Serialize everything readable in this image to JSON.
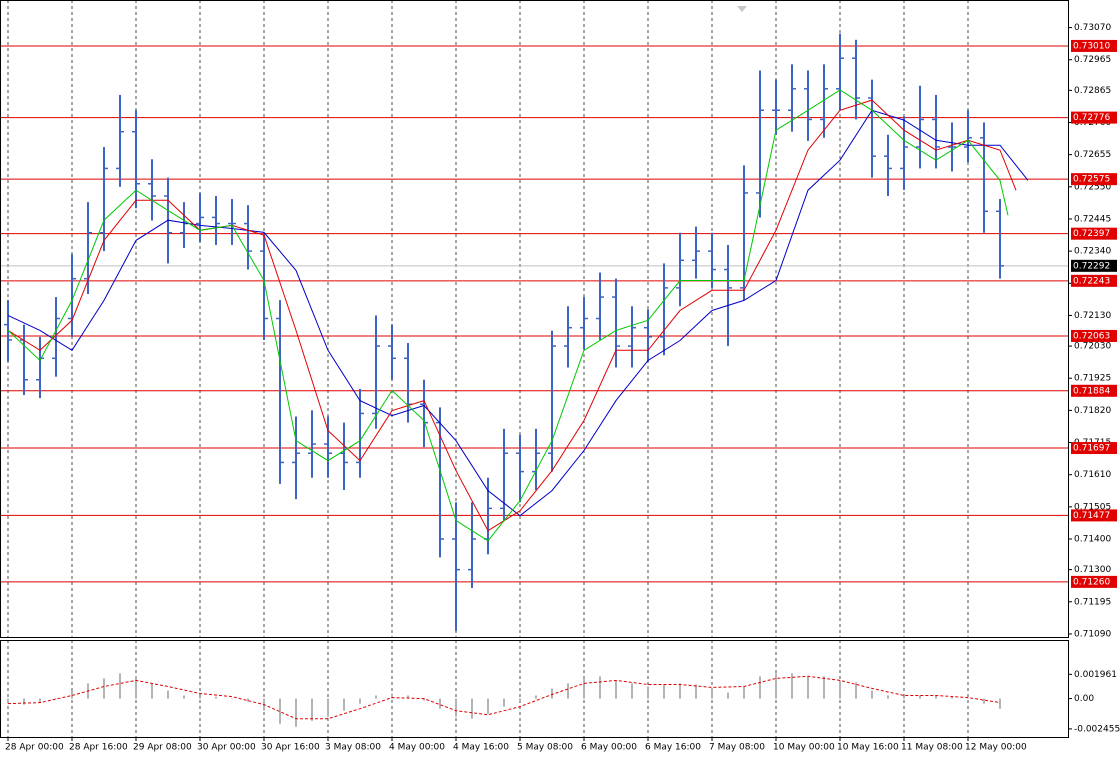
{
  "chart_data": [
    {
      "type": "ohlc",
      "color": "#3d63c4",
      "xlim": [
        -2,
        265
      ],
      "ylim": [
        0.7108,
        0.7316
      ],
      "grid": true,
      "x": [
        0,
        4,
        8,
        12,
        16,
        20,
        24,
        28,
        32,
        36,
        40,
        44,
        48,
        52,
        56,
        60,
        64,
        68,
        72,
        76,
        80,
        84,
        88,
        92,
        96,
        100,
        104,
        108,
        112,
        116,
        120,
        124,
        128,
        132,
        136,
        140,
        144,
        148,
        152,
        156,
        160,
        164,
        168,
        172,
        176,
        180,
        184,
        188,
        192,
        196,
        200,
        204,
        208,
        212,
        216,
        220,
        224,
        228,
        232,
        236,
        240,
        244,
        248
      ],
      "open": [
        0.721,
        0.7205,
        0.7192,
        0.7199,
        0.7212,
        0.7225,
        0.724,
        0.7261,
        0.7273,
        0.7256,
        0.7252,
        0.724,
        0.7243,
        0.7245,
        0.7243,
        0.7243,
        0.7234,
        0.7212,
        0.7165,
        0.7168,
        0.7171,
        0.7168,
        0.7165,
        0.7181,
        0.7203,
        0.7199,
        0.7184,
        0.7178,
        0.714,
        0.713,
        0.714,
        0.715,
        0.7168,
        0.7162,
        0.7168,
        0.7203,
        0.7209,
        0.7212,
        0.7219,
        0.7203,
        0.7209,
        0.7206,
        0.7222,
        0.7231,
        0.7234,
        0.7228,
        0.7222,
        0.7253,
        0.728,
        0.728,
        0.7287,
        0.7277,
        0.7287,
        0.7297,
        0.7284,
        0.7265,
        0.7261,
        0.7268,
        0.7277,
        0.7268,
        0.7268,
        0.7271,
        0.7247
      ],
      "high": [
        0.7218,
        0.721,
        0.7206,
        0.7219,
        0.7233,
        0.725,
        0.7268,
        0.7285,
        0.728,
        0.7264,
        0.7258,
        0.725,
        0.7253,
        0.7252,
        0.7251,
        0.7249,
        0.724,
        0.7218,
        0.718,
        0.7182,
        0.718,
        0.7178,
        0.7189,
        0.7213,
        0.721,
        0.7204,
        0.7192,
        0.7183,
        0.7152,
        0.7152,
        0.716,
        0.7176,
        0.7174,
        0.7176,
        0.7208,
        0.7216,
        0.7219,
        0.7227,
        0.7225,
        0.7216,
        0.7215,
        0.723,
        0.724,
        0.7242,
        0.724,
        0.7236,
        0.7262,
        0.7293,
        0.729,
        0.7295,
        0.7293,
        0.7295,
        0.7305,
        0.7303,
        0.729,
        0.7272,
        0.7278,
        0.7288,
        0.7285,
        0.7276,
        0.728,
        0.7276,
        0.7251
      ],
      "low": [
        0.7198,
        0.7187,
        0.7186,
        0.7193,
        0.7206,
        0.722,
        0.7234,
        0.7255,
        0.7248,
        0.7244,
        0.723,
        0.7235,
        0.7237,
        0.7236,
        0.7236,
        0.7228,
        0.7205,
        0.7158,
        0.7153,
        0.716,
        0.716,
        0.7156,
        0.716,
        0.7176,
        0.7192,
        0.7178,
        0.717,
        0.7134,
        0.711,
        0.7124,
        0.7135,
        0.7146,
        0.7152,
        0.7156,
        0.7162,
        0.7196,
        0.7202,
        0.7205,
        0.7196,
        0.7196,
        0.7198,
        0.72,
        0.7216,
        0.7225,
        0.7222,
        0.7203,
        0.7218,
        0.7245,
        0.7272,
        0.7273,
        0.727,
        0.7271,
        0.728,
        0.7277,
        0.7258,
        0.7252,
        0.7254,
        0.7261,
        0.7261,
        0.726,
        0.7263,
        0.724,
        0.7225
      ],
      "close": [
        0.7205,
        0.7192,
        0.7199,
        0.7212,
        0.7225,
        0.724,
        0.7261,
        0.7273,
        0.7256,
        0.7252,
        0.724,
        0.7243,
        0.7245,
        0.7243,
        0.7243,
        0.7234,
        0.7212,
        0.7165,
        0.7168,
        0.7171,
        0.7168,
        0.7165,
        0.7181,
        0.7203,
        0.7199,
        0.7184,
        0.7178,
        0.714,
        0.713,
        0.714,
        0.715,
        0.7168,
        0.7162,
        0.7168,
        0.7203,
        0.7209,
        0.7212,
        0.7219,
        0.7203,
        0.7209,
        0.7206,
        0.7222,
        0.7231,
        0.7234,
        0.7228,
        0.7222,
        0.7253,
        0.728,
        0.728,
        0.7287,
        0.7277,
        0.7287,
        0.7297,
        0.7284,
        0.7265,
        0.7261,
        0.7268,
        0.7277,
        0.7268,
        0.7268,
        0.7271,
        0.7247,
        0.72292
      ],
      "series": [
        {
          "color": "#0000c8",
          "x": [
            0,
            8,
            16,
            24,
            32,
            40,
            48,
            56,
            64,
            72,
            80,
            88,
            96,
            104,
            112,
            120,
            128,
            136,
            144,
            152,
            160,
            168,
            176,
            184,
            192,
            200,
            208,
            216,
            224,
            232,
            240,
            248,
            255
          ],
          "values": [
            0.7213,
            0.72081,
            0.72016,
            0.72179,
            0.72375,
            0.72441,
            0.72424,
            0.72414,
            0.72401,
            0.72277,
            0.72016,
            0.71852,
            0.71803,
            0.71836,
            0.71721,
            0.71558,
            0.71476,
            0.71558,
            0.71689,
            0.71852,
            0.71983,
            0.72048,
            0.72146,
            0.72179,
            0.72244,
            0.72539,
            0.72637,
            0.728,
            0.72768,
            0.72702,
            0.72686,
            0.72686,
            0.72571
          ]
        },
        {
          "color": "#e00000",
          "x": [
            0,
            8,
            16,
            24,
            32,
            40,
            48,
            56,
            64,
            72,
            80,
            88,
            96,
            104,
            112,
            120,
            128,
            136,
            144,
            152,
            160,
            168,
            176,
            184,
            192,
            200,
            208,
            216,
            224,
            232,
            240,
            248,
            252
          ],
          "values": [
            0.72081,
            0.72016,
            0.72114,
            0.72375,
            0.72506,
            0.72506,
            0.72408,
            0.72424,
            0.72392,
            0.72081,
            0.71754,
            0.71656,
            0.71819,
            0.71852,
            0.71623,
            0.71427,
            0.71492,
            0.71623,
            0.71787,
            0.72016,
            0.72016,
            0.72146,
            0.72212,
            0.72212,
            0.72408,
            0.7267,
            0.728,
            0.72833,
            0.72735,
            0.7267,
            0.72702,
            0.7267,
            0.72539
          ]
        },
        {
          "color": "#00c800",
          "x": [
            0,
            8,
            16,
            24,
            32,
            40,
            48,
            56,
            64,
            72,
            80,
            88,
            96,
            104,
            112,
            120,
            128,
            136,
            144,
            152,
            160,
            168,
            176,
            184,
            192,
            200,
            208,
            216,
            224,
            232,
            240,
            248,
            250
          ],
          "values": [
            0.72081,
            0.71983,
            0.72179,
            0.72441,
            0.72539,
            0.72473,
            0.72408,
            0.72424,
            0.72244,
            0.71721,
            0.71656,
            0.71721,
            0.71885,
            0.71787,
            0.7146,
            0.71394,
            0.71525,
            0.71721,
            0.72016,
            0.72081,
            0.72114,
            0.72244,
            0.72244,
            0.72244,
            0.72735,
            0.728,
            0.72866,
            0.728,
            0.72702,
            0.72637,
            0.72702,
            0.72571,
            0.72457
          ]
        }
      ],
      "levels": [
        {
          "value": 0.7301,
          "label": "0.73010"
        },
        0.72776,
        0.72575,
        0.72397,
        0.72243,
        0.72063,
        0.71884,
        0.71697,
        0.71477,
        {
          "value": 0.7126,
          "label": "0.71260"
        }
      ],
      "level_color": "#e00000",
      "current_price": 0.72292,
      "yticks": [
        {
          "value": 0.7307,
          "label": "0.73070"
        },
        0.72965,
        0.72865,
        {
          "value": 0.7276,
          "label": "0.72760"
        },
        0.72655,
        {
          "value": 0.7255,
          "label": "0.72550"
        },
        0.72445,
        {
          "value": 0.7234,
          "label": "0.72340"
        },
        0.72235,
        {
          "value": 0.7213,
          "label": "0.72130"
        },
        {
          "value": 0.7203,
          "label": "0.72030"
        },
        0.71925,
        {
          "value": 0.7182,
          "label": "0.71820"
        },
        0.71715,
        {
          "value": 0.7161,
          "label": "0.71610"
        },
        0.71505,
        {
          "value": 0.714,
          "label": "0.71400"
        },
        {
          "value": 0.713,
          "label": "0.71300"
        },
        0.71195,
        {
          "value": 0.7109,
          "label": "0.71090"
        }
      ],
      "xticks": [
        {
          "value": 0,
          "label": "28 Apr 00:00"
        },
        {
          "value": 16,
          "label": "28 Apr 16:00"
        },
        {
          "value": 32,
          "label": "29 Apr 08:00"
        },
        {
          "value": 48,
          "label": "30 Apr 00:00"
        },
        {
          "value": 64,
          "label": "30 Apr 16:00"
        },
        {
          "value": 80,
          "label": "3 May 08:00"
        },
        {
          "value": 96,
          "label": "4 May 00:00"
        },
        {
          "value": 112,
          "label": "4 May 16:00"
        },
        {
          "value": 128,
          "label": "5 May 08:00"
        },
        {
          "value": 144,
          "label": "6 May 00:00"
        },
        {
          "value": 160,
          "label": "6 May 16:00"
        },
        {
          "value": 176,
          "label": "7 May 08:00"
        },
        {
          "value": 192,
          "label": "10 May 00:00"
        },
        {
          "value": 208,
          "label": "10 May 16:00"
        },
        {
          "value": 224,
          "label": "11 May 08:00"
        },
        {
          "value": 240,
          "label": "12 May 00:00"
        }
      ]
    },
    {
      "type": "macd",
      "color": "#b4b4b4",
      "xlim": [
        -2,
        265
      ],
      "ylim": [
        -0.00311,
        0.00474
      ],
      "grid": true,
      "x": [
        0,
        4,
        8,
        12,
        16,
        20,
        24,
        28,
        32,
        36,
        40,
        44,
        48,
        52,
        56,
        60,
        64,
        68,
        72,
        76,
        80,
        84,
        88,
        92,
        96,
        100,
        104,
        108,
        112,
        116,
        120,
        124,
        128,
        132,
        136,
        140,
        144,
        148,
        152,
        156,
        160,
        164,
        168,
        172,
        176,
        180,
        184,
        188,
        192,
        196,
        200,
        204,
        208,
        212,
        216,
        220,
        224,
        228,
        232,
        236,
        240,
        244,
        248
      ],
      "values": [
        -0.00041,
        -0.00049,
        -0.00033,
        0,
        0.00065,
        0.00123,
        0.00163,
        0.00204,
        0.0018,
        0.00123,
        0.00065,
        0.00025,
        0.00016,
        0.00016,
        0,
        -0.00025,
        -0.00098,
        -0.00204,
        -0.00229,
        -0.0018,
        -0.00147,
        -0.00098,
        -0.00041,
        0.00025,
        0.00041,
        0.00025,
        -0.00016,
        -0.00082,
        -0.00147,
        -0.00163,
        -0.00123,
        -0.00065,
        -0.00025,
        0.00025,
        0.00082,
        0.00123,
        0.00163,
        0.0018,
        0.00147,
        0.00123,
        0.00098,
        0.00114,
        0.00123,
        0.00114,
        0.00082,
        0.00049,
        0.00098,
        0.0018,
        0.00204,
        0.00204,
        0.0018,
        0.0018,
        0.00147,
        0.00131,
        0.00065,
        0.00025,
        0.00016,
        0.00025,
        0.00025,
        0.00016,
        0,
        -0.00041,
        -0.00082
      ],
      "signal": {
        "color": "#e00000",
        "x": [
          0,
          8,
          16,
          24,
          32,
          40,
          48,
          56,
          64,
          72,
          80,
          88,
          96,
          104,
          112,
          120,
          128,
          136,
          144,
          152,
          160,
          168,
          176,
          184,
          192,
          200,
          208,
          216,
          224,
          232,
          240,
          248
        ],
        "values": [
          -0.00041,
          -0.00033,
          0.00025,
          0.00098,
          0.00147,
          0.00098,
          0.00041,
          0.00016,
          -0.00049,
          -0.00163,
          -0.00163,
          -0.00082,
          8e-05,
          0,
          -0.00098,
          -0.00131,
          -0.00065,
          0.00033,
          0.00123,
          0.00147,
          0.00114,
          0.00114,
          0.0009,
          0.00098,
          0.00163,
          0.0018,
          0.00147,
          0.00082,
          0.00025,
          0.00025,
          8e-05,
          -0.00033
        ]
      },
      "yticks": [
        0.001961,
        {
          "value": 0,
          "label": "0.00"
        },
        -0.002455
      ]
    }
  ]
}
